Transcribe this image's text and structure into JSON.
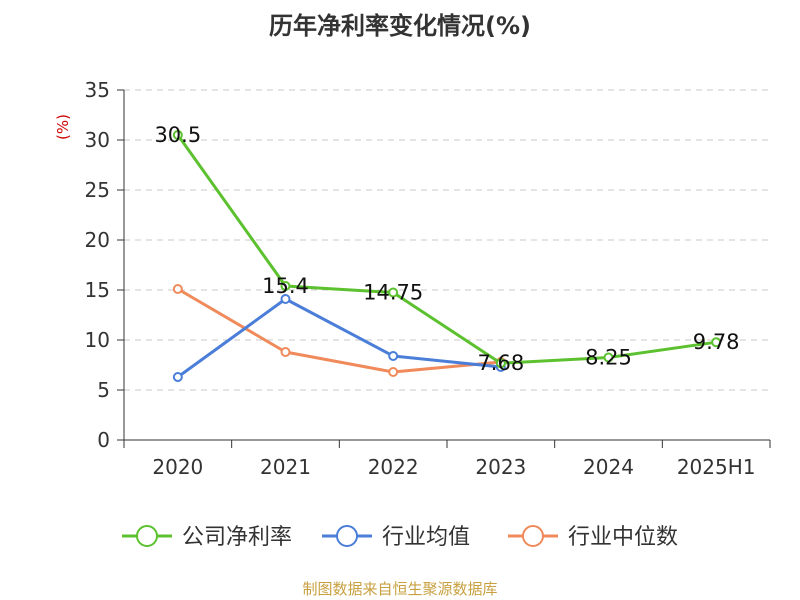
{
  "chart_data": {
    "type": "line",
    "title": "历年净利率变化情况(%)",
    "ylabel": "(%)",
    "xlabel": "",
    "categories": [
      "2020",
      "2021",
      "2022",
      "2023",
      "2024",
      "2025H1"
    ],
    "ylim": [
      0,
      35
    ],
    "yticks": [
      0,
      5,
      10,
      15,
      20,
      25,
      30,
      35
    ],
    "grid": true,
    "legend_position": "bottom",
    "series": [
      {
        "name": "公司净利率",
        "color": "#5cc12e",
        "values": [
          30.5,
          15.4,
          14.75,
          7.68,
          8.25,
          9.78
        ],
        "labels": [
          "30.5",
          "15.4",
          "14.75",
          "7.68",
          "8.25",
          "9.78"
        ]
      },
      {
        "name": "行业均值",
        "color": "#4a7ed8",
        "values": [
          6.3,
          14.1,
          8.4,
          7.3,
          null,
          null
        ]
      },
      {
        "name": "行业中位数",
        "color": "#f08a5a",
        "values": [
          15.1,
          8.8,
          6.8,
          7.8,
          null,
          null
        ]
      }
    ]
  },
  "source_text": "制图数据来自恒生聚源数据库"
}
